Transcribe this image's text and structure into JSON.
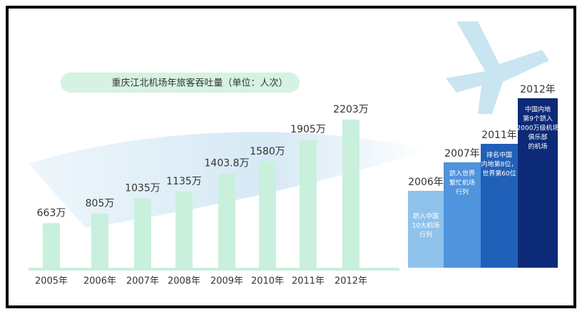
{
  "chart_data": {
    "type": "bar",
    "title": "重庆江北机场年旅客吞吐量（单位：人次）",
    "categories": [
      "2005年",
      "2006年",
      "2007年",
      "2008年",
      "2009年",
      "2010年",
      "2011年",
      "2012年"
    ],
    "values": [
      663,
      805,
      1035,
      1135,
      1403.8,
      1580,
      1905,
      2203
    ],
    "value_labels": [
      "663万",
      "805万",
      "1035万",
      "1135万",
      "1403.8万",
      "1580万",
      "1905万",
      "2203万"
    ],
    "color": "#c9f0dc"
  },
  "milestones": [
    {
      "year": "2006年",
      "lines": [
        "跻入中国",
        "10大机场",
        "行列"
      ]
    },
    {
      "year": "2007年",
      "lines": [
        "跻入世界",
        "繁忙机场",
        "行列"
      ]
    },
    {
      "year": "2011年",
      "lines": [
        "排名中国",
        "内地第8位，",
        "世界第60位"
      ]
    },
    {
      "year": "2012年",
      "lines": [
        "中国内地",
        "第9个跻入",
        "2000万级机场",
        "俱乐部",
        "的机场"
      ]
    }
  ]
}
